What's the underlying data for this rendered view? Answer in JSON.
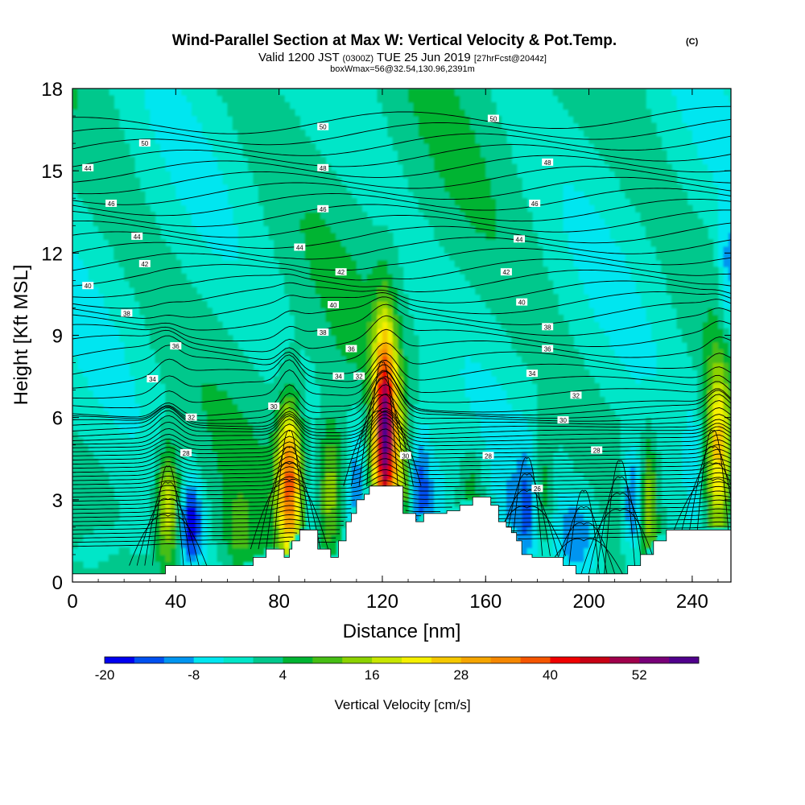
{
  "chart_data": {
    "type": "heatmap",
    "title": "Wind-Parallel Section at Max W: Vertical Velocity & Pot.Temp.",
    "title_tag": "(C)",
    "subtitle_main": "Valid 1200 JST",
    "subtitle_z": "(0300Z)",
    "subtitle_date": "TUE 25 Jun 2019",
    "subtitle_fcst": "[27hrFcst@2044z]",
    "subtitle2": "boxWmax=56@32.54,130.96,2391m",
    "xlabel": "Distance [nm]",
    "ylabel": "Height [Kft MSL]",
    "xlim": [
      0,
      255
    ],
    "ylim": [
      0,
      18
    ],
    "xticks": [
      "0",
      "40",
      "80",
      "120",
      "160",
      "200",
      "240"
    ],
    "yticks": [
      "0",
      "3",
      "6",
      "9",
      "12",
      "15",
      "18"
    ],
    "colorbar_label": "Vertical Velocity [cm/s]",
    "colorbar_ticks": [
      "-20",
      "-8",
      "4",
      "16",
      "28",
      "40",
      "52"
    ],
    "colorbar_colors": [
      "#0000f0",
      "#0050f0",
      "#0095f0",
      "#00e6f0",
      "#00e6c8",
      "#00c88c",
      "#00b432",
      "#46be14",
      "#8cd200",
      "#c8e600",
      "#f5f000",
      "#f5c800",
      "#f5a500",
      "#f58700",
      "#f55500",
      "#f00000",
      "#c80014",
      "#a0004b",
      "#780078",
      "#50008c"
    ],
    "isotherm_labels": [
      "26",
      "28",
      "30",
      "32",
      "34",
      "36",
      "38",
      "40",
      "42",
      "44",
      "46",
      "48",
      "50"
    ],
    "data_notes_updrafts": [
      {
        "x_nm": 37,
        "top_kft": 4.5,
        "peak_cm_s": 22
      },
      {
        "x_nm": 84,
        "top_kft": 6.0,
        "peak_cm_s": 36
      },
      {
        "x_nm": 100,
        "top_kft": 5.5,
        "peak_cm_s": 16
      },
      {
        "x_nm": 121,
        "top_kft": 8.5,
        "peak_cm_s": 56
      },
      {
        "x_nm": 181,
        "top_kft": 5.0,
        "peak_cm_s": 14
      },
      {
        "x_nm": 250,
        "top_kft": 7.5,
        "peak_cm_s": 26
      }
    ],
    "data_notes_downdrafts": [
      {
        "x_nm": 46,
        "top_kft": 3.5,
        "min_cm_s": -18
      },
      {
        "x_nm": 135,
        "top_kft": 5.5,
        "min_cm_s": -16
      },
      {
        "x_nm": 177,
        "top_kft": 4.5,
        "min_cm_s": -14
      },
      {
        "x_nm": 217,
        "top_kft": 4.5,
        "min_cm_s": -16
      }
    ],
    "terrain_kft": [
      [
        0,
        0.3
      ],
      [
        10,
        0.3
      ],
      [
        20,
        0.3
      ],
      [
        30,
        0.3
      ],
      [
        35,
        0.3
      ],
      [
        36,
        0.6
      ],
      [
        45,
        0.6
      ],
      [
        55,
        0.6
      ],
      [
        65,
        0.6
      ],
      [
        70,
        0.9
      ],
      [
        75,
        1.2
      ],
      [
        80,
        1.2
      ],
      [
        82,
        0.9
      ],
      [
        84,
        1.2
      ],
      [
        85,
        1.5
      ],
      [
        88,
        1.9
      ],
      [
        92,
        1.9
      ],
      [
        95,
        1.2
      ],
      [
        98,
        1.2
      ],
      [
        100,
        0.9
      ],
      [
        103,
        1.5
      ],
      [
        106,
        2.2
      ],
      [
        108,
        2.5
      ],
      [
        110,
        3.0
      ],
      [
        113,
        3.2
      ],
      [
        115,
        3.5
      ],
      [
        120,
        3.5
      ],
      [
        126,
        3.5
      ],
      [
        128,
        2.5
      ],
      [
        133,
        2.2
      ],
      [
        136,
        2.5
      ],
      [
        145,
        2.6
      ],
      [
        150,
        2.8
      ],
      [
        155,
        3.1
      ],
      [
        160,
        3.1
      ],
      [
        162,
        2.8
      ],
      [
        165,
        2.2
      ],
      [
        168,
        2.0
      ],
      [
        170,
        1.8
      ],
      [
        172,
        1.5
      ],
      [
        174,
        1.0
      ],
      [
        178,
        0.9
      ],
      [
        188,
        0.9
      ],
      [
        190,
        0.6
      ],
      [
        195,
        0.3
      ],
      [
        205,
        0.3
      ],
      [
        213,
        0.3
      ],
      [
        215,
        0.6
      ],
      [
        220,
        1.0
      ],
      [
        225,
        1.5
      ],
      [
        230,
        1.9
      ],
      [
        240,
        1.9
      ],
      [
        255,
        1.9
      ]
    ]
  }
}
